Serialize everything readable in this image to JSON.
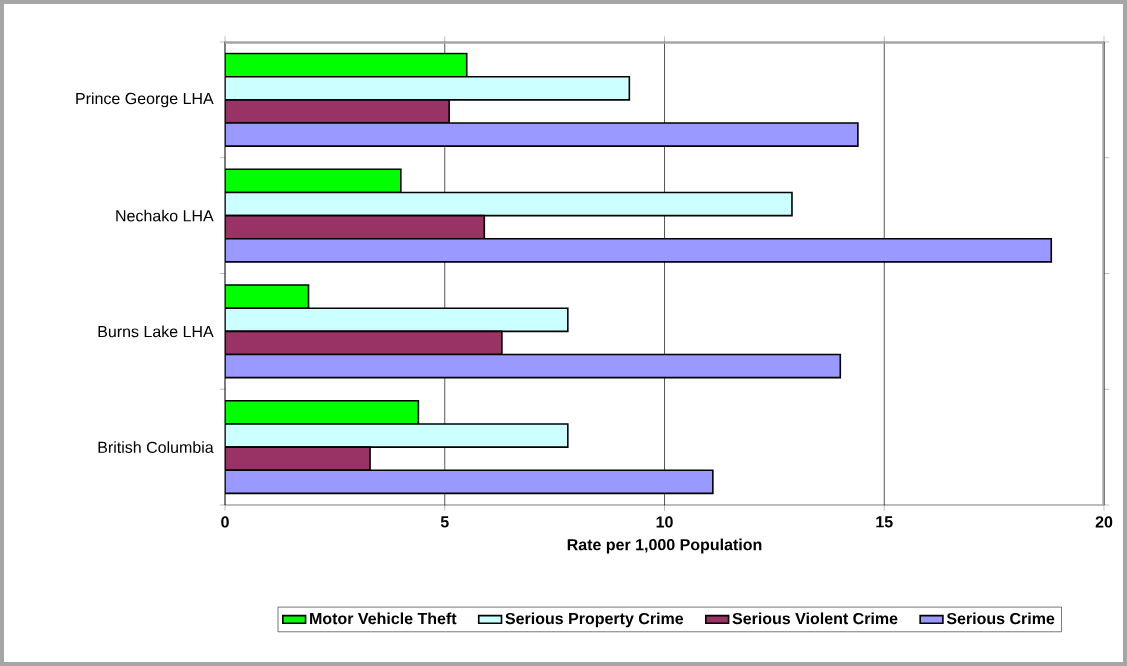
{
  "chart_data": {
    "type": "bar",
    "orientation": "horizontal",
    "categories": [
      "Prince George LHA",
      "Nechako LHA",
      "Burns Lake LHA",
      "British Columbia"
    ],
    "series": [
      {
        "name": "Motor Vehicle Theft",
        "color": "#00ff00",
        "values": [
          5.5,
          4.0,
          1.9,
          4.4
        ]
      },
      {
        "name": "Serious Property Crime",
        "color": "#ccffff",
        "values": [
          9.2,
          12.9,
          7.8,
          7.8
        ]
      },
      {
        "name": "Serious Violent Crime",
        "color": "#993366",
        "values": [
          5.1,
          5.9,
          6.3,
          3.3
        ]
      },
      {
        "name": "Serious Crime",
        "color": "#9999ff",
        "values": [
          14.4,
          18.8,
          14.0,
          11.1
        ]
      }
    ],
    "xlim": [
      0,
      20
    ],
    "xticks": [
      0,
      5,
      10,
      15,
      20
    ],
    "xlabel": "Rate per 1,000 Population",
    "grid": "x",
    "legend": "bottom"
  }
}
